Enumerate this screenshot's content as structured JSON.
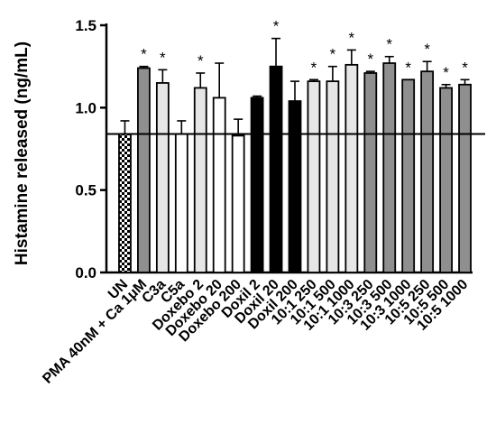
{
  "chart_data": {
    "type": "bar",
    "title": "",
    "xlabel": "",
    "ylabel": "Histamine released (ng/mL)",
    "ylim": [
      0,
      1.5
    ],
    "yticks": [
      "0.0",
      "0.5",
      "1.0",
      "1.5"
    ],
    "reference_line": 0.84,
    "significance_marker": "*",
    "categories": [
      "UN",
      "PMA 40nM + Ca 1μM",
      "C3a",
      "C5a",
      "Doxebo 2",
      "Doxebo 20",
      "Doxebo 200",
      "Doxil 2",
      "Doxil 20",
      "Doxil 200",
      "10:1 250",
      "10:1 500",
      "10:1 1000",
      "10:3 250",
      "10:3 500",
      "10:3 1000",
      "10:5 250",
      "10:5 500",
      "10:5 1000"
    ],
    "values": [
      0.84,
      1.24,
      1.15,
      0.84,
      1.12,
      1.06,
      0.83,
      1.06,
      1.25,
      1.04,
      1.16,
      1.16,
      1.26,
      1.21,
      1.27,
      1.17,
      1.22,
      1.12,
      1.14
    ],
    "errors": [
      0.08,
      0.01,
      0.08,
      0.08,
      0.09,
      0.21,
      0.1,
      0.01,
      0.17,
      0.12,
      0.01,
      0.09,
      0.09,
      0.01,
      0.04,
      0.0,
      0.06,
      0.02,
      0.03
    ],
    "significant": [
      false,
      true,
      true,
      false,
      true,
      false,
      false,
      false,
      true,
      false,
      true,
      true,
      true,
      true,
      true,
      true,
      true,
      true,
      true
    ],
    "fill_styles": [
      "checker",
      "gray",
      "light",
      "white",
      "light",
      "white",
      "white",
      "black",
      "black",
      "black",
      "light",
      "light",
      "light",
      "gray",
      "gray",
      "gray",
      "gray",
      "gray",
      "gray"
    ],
    "colors": {
      "gray": "#8f8f8f",
      "light": "#e6e6e6",
      "white": "#ffffff",
      "black": "#000000"
    }
  }
}
